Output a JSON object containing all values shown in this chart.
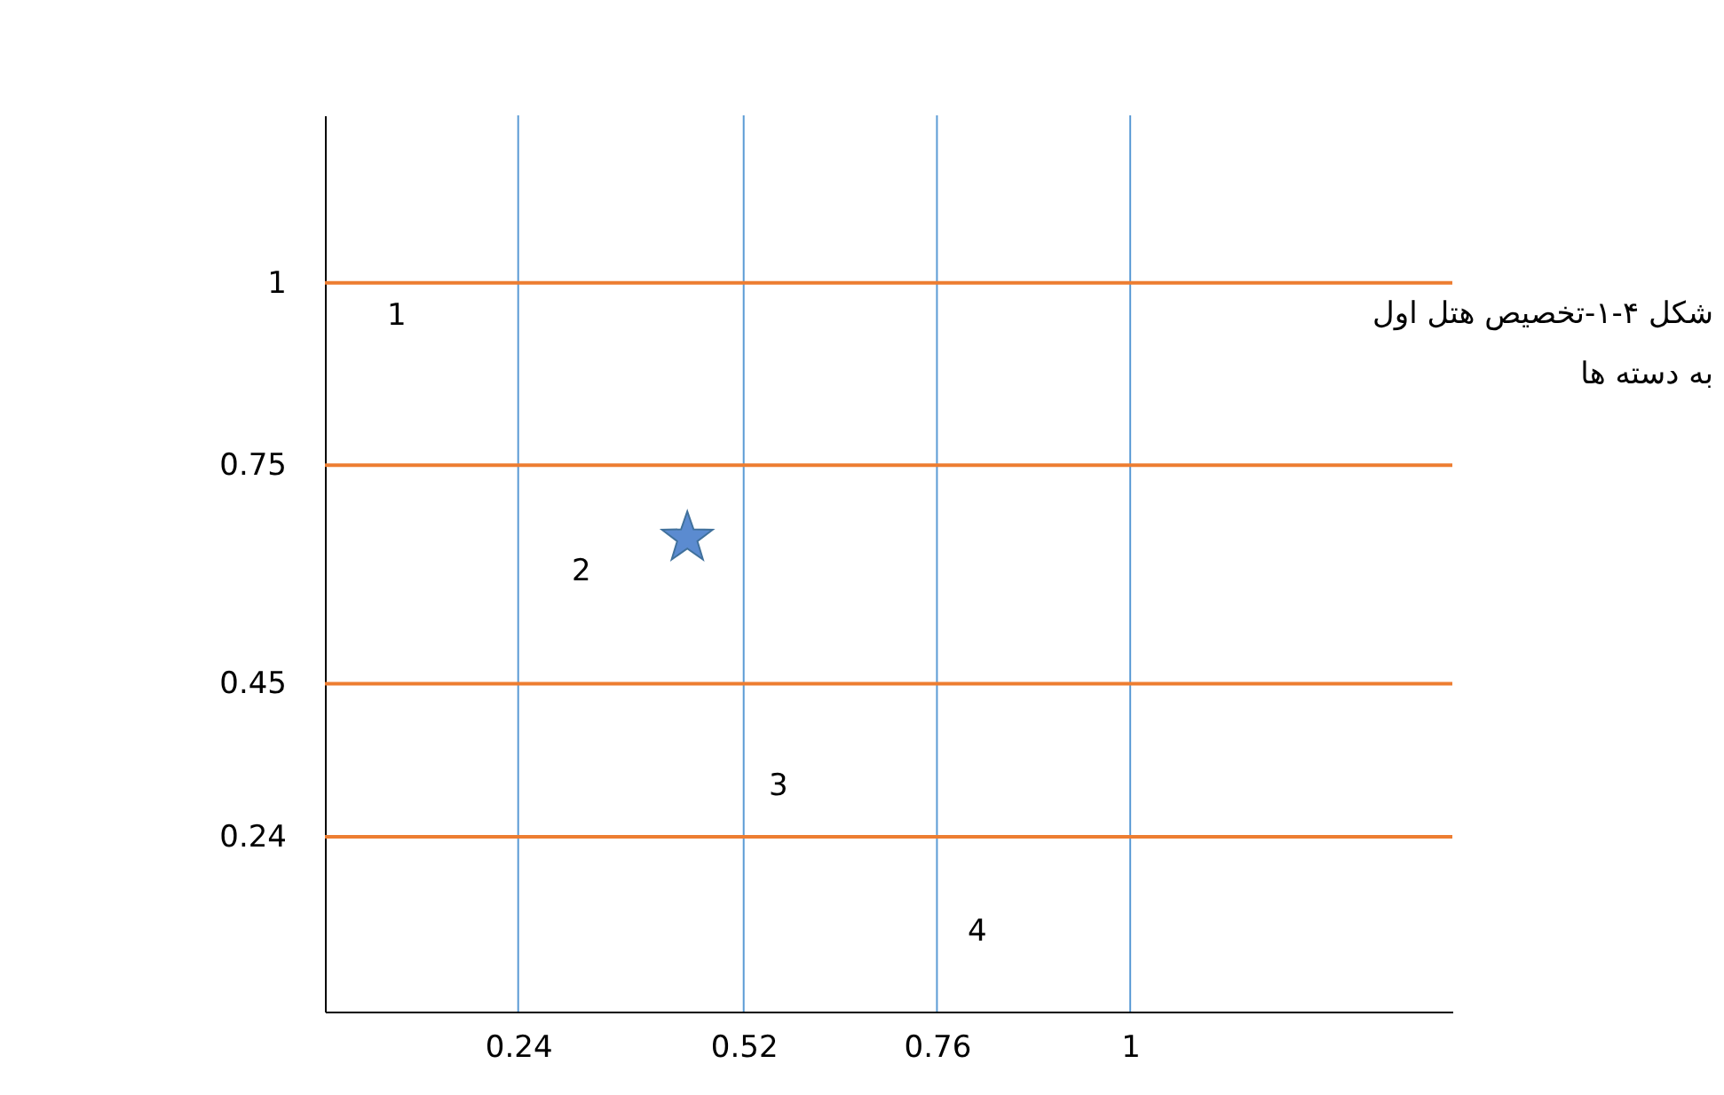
{
  "chart_data": {
    "type": "scatter",
    "title": "شکل ۴-۱-تخصیص هتل اول به دسته ها",
    "x": [
      0.45
    ],
    "series": [
      {
        "color": "#5b8bd0",
        "values": [
          0.65
        ]
      }
    ],
    "marker": "star",
    "grid": false,
    "xlim": [
      0,
      1.4
    ],
    "ylim": [
      0,
      1.23
    ],
    "xticks": [
      0.24,
      0.52,
      0.76,
      1
    ],
    "yticks": [
      0.24,
      0.45,
      0.75,
      1
    ],
    "ref_lines": [
      {
        "axis": "y",
        "value": 1,
        "color": "#ed7d31"
      },
      {
        "axis": "y",
        "value": 0.75,
        "color": "#ed7d31"
      },
      {
        "axis": "y",
        "value": 0.45,
        "color": "#ed7d31"
      },
      {
        "axis": "y",
        "value": 0.24,
        "color": "#ed7d31"
      },
      {
        "axis": "x",
        "value": 0.24,
        "color": "#5b9bd5"
      },
      {
        "axis": "x",
        "value": 0.52,
        "color": "#5b9bd5"
      },
      {
        "axis": "x",
        "value": 0.76,
        "color": "#5b9bd5"
      },
      {
        "axis": "x",
        "value": 1,
        "color": "#5b9bd5"
      }
    ],
    "annotations": [
      "1",
      "2",
      "3",
      "4"
    ]
  }
}
